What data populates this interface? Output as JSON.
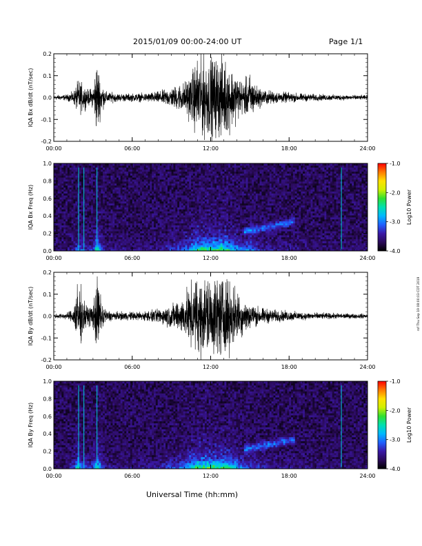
{
  "header": {
    "title": "2015/01/09  00:00-24:00 UT",
    "page": "Page 1/1"
  },
  "side_note": "rof Thu Sep 19 08:00:03 CDT 2019",
  "x_axis_title": "Universal Time (hh:mm)",
  "chart_data": [
    {
      "type": "line",
      "ylabel": "IQA Bx dB/dt (nT/sec)",
      "xlim": [
        "00:00",
        "24:00"
      ],
      "ylim": [
        -0.2,
        0.2
      ],
      "x_ticks": [
        "00:00",
        "06:00",
        "12:00",
        "18:00",
        "24:00"
      ],
      "y_ticks": [
        "-0.2",
        "-0.1",
        "0.0",
        "0.1",
        "0.2"
      ],
      "y_tick_values": [
        -0.2,
        -0.1,
        0.0,
        0.1,
        0.2
      ],
      "envelope": {
        "hours": [
          0,
          1,
          1.5,
          1.9,
          2.2,
          2.6,
          3.0,
          3.3,
          3.6,
          4.0,
          5,
          6,
          7,
          8,
          9,
          10,
          10.5,
          11,
          11.5,
          12,
          12.5,
          13,
          13.5,
          14,
          14.5,
          15,
          15.5,
          16,
          16.5,
          17,
          18,
          19,
          20,
          21,
          22,
          23,
          24
        ],
        "amplitude": [
          0.012,
          0.015,
          0.03,
          0.09,
          0.07,
          0.04,
          0.05,
          0.2,
          0.08,
          0.03,
          0.02,
          0.02,
          0.022,
          0.03,
          0.05,
          0.08,
          0.12,
          0.2,
          0.2,
          0.2,
          0.2,
          0.2,
          0.16,
          0.12,
          0.08,
          0.12,
          0.06,
          0.04,
          0.035,
          0.03,
          0.025,
          0.02,
          0.017,
          0.015,
          0.014,
          0.012,
          0.012
        ]
      }
    },
    {
      "type": "heatmap",
      "ylabel": "IQA Bx Freq (Hz)",
      "xlim": [
        "00:00",
        "24:00"
      ],
      "ylim": [
        0.0,
        1.0
      ],
      "x_ticks": [
        "00:00",
        "06:00",
        "12:00",
        "18:00",
        "24:00"
      ],
      "y_ticks": [
        "0.0",
        "0.2",
        "0.4",
        "0.6",
        "0.8",
        "1.0"
      ],
      "y_tick_values": [
        0.0,
        0.2,
        0.4,
        0.6,
        0.8,
        1.0
      ],
      "colorbar": {
        "label": "Log10 Power",
        "range": [
          -4.0,
          -1.0
        ],
        "ticks": [
          "-1.0",
          "-2.0",
          "-3.0",
          "-4.0"
        ],
        "tick_values": [
          -1.0,
          -2.0,
          -3.0,
          -4.0
        ],
        "colors": [
          "#000000",
          "#2a0a58",
          "#3a18a6",
          "#2060ff",
          "#00b8ff",
          "#00e0b0",
          "#30e030",
          "#d0f000",
          "#ffe000",
          "#ff7a00",
          "#ff0000"
        ]
      },
      "vertical_lines_hours": [
        1.9,
        2.3,
        3.3,
        22.0
      ]
    },
    {
      "type": "line",
      "ylabel": "IQA By dB/dt (nT/sec)",
      "xlim": [
        "00:00",
        "24:00"
      ],
      "ylim": [
        -0.2,
        0.2
      ],
      "x_ticks": [
        "00:00",
        "06:00",
        "12:00",
        "18:00",
        "24:00"
      ],
      "y_ticks": [
        "-0.2",
        "-0.1",
        "0.0",
        "0.1",
        "0.2"
      ],
      "y_tick_values": [
        -0.2,
        -0.1,
        0.0,
        0.1,
        0.2
      ],
      "envelope": {
        "hours": [
          0,
          1,
          1.5,
          1.9,
          2.2,
          2.6,
          3.0,
          3.3,
          3.6,
          4.0,
          5,
          6,
          7,
          8,
          9,
          10,
          10.5,
          11,
          11.5,
          12,
          12.5,
          13,
          13.5,
          14,
          14.5,
          15,
          15.5,
          16,
          16.5,
          17,
          18,
          19,
          20,
          21,
          22,
          23,
          24
        ],
        "amplitude": [
          0.012,
          0.015,
          0.04,
          0.2,
          0.09,
          0.05,
          0.06,
          0.2,
          0.1,
          0.03,
          0.02,
          0.022,
          0.025,
          0.035,
          0.06,
          0.1,
          0.16,
          0.2,
          0.2,
          0.2,
          0.2,
          0.2,
          0.17,
          0.13,
          0.09,
          0.07,
          0.05,
          0.04,
          0.035,
          0.03,
          0.025,
          0.02,
          0.017,
          0.015,
          0.014,
          0.012,
          0.012
        ]
      }
    },
    {
      "type": "heatmap",
      "ylabel": "IQA By Freq (Hz)",
      "xlim": [
        "00:00",
        "24:00"
      ],
      "ylim": [
        0.0,
        1.0
      ],
      "x_ticks": [
        "00:00",
        "06:00",
        "12:00",
        "18:00",
        "24:00"
      ],
      "y_ticks": [
        "0.0",
        "0.2",
        "0.4",
        "0.6",
        "0.8",
        "1.0"
      ],
      "y_tick_values": [
        0.0,
        0.2,
        0.4,
        0.6,
        0.8,
        1.0
      ],
      "colorbar": {
        "label": "Log10 Power",
        "range": [
          -4.0,
          -1.0
        ],
        "ticks": [
          "-1.0",
          "-2.0",
          "-3.0",
          "-4.0"
        ],
        "tick_values": [
          -1.0,
          -2.0,
          -3.0,
          -4.0
        ],
        "colors": [
          "#000000",
          "#2a0a58",
          "#3a18a6",
          "#2060ff",
          "#00b8ff",
          "#00e0b0",
          "#30e030",
          "#d0f000",
          "#ffe000",
          "#ff7a00",
          "#ff0000"
        ]
      },
      "vertical_lines_hours": [
        1.9,
        2.3,
        3.3,
        22.0
      ]
    }
  ]
}
